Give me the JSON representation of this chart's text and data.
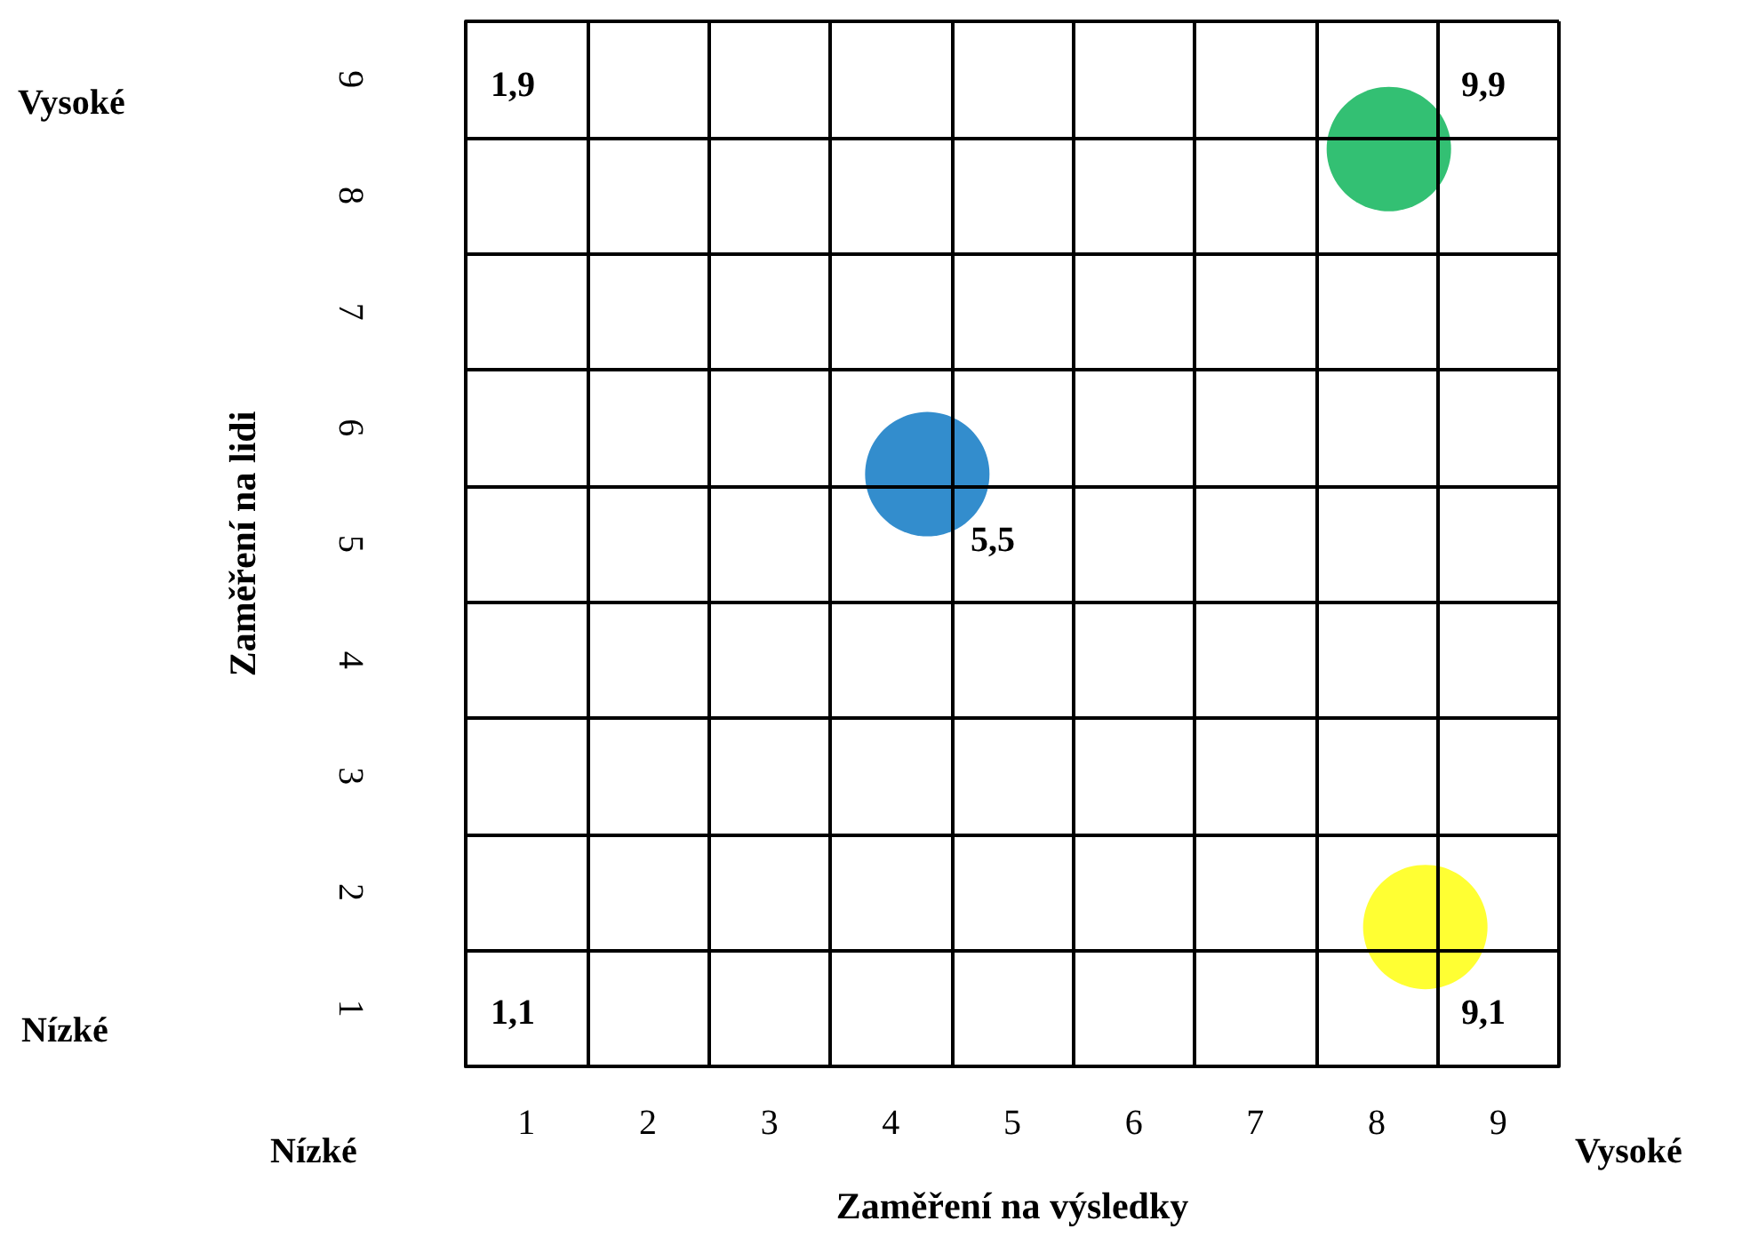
{
  "chart_data": {
    "type": "scatter",
    "xlabel": "Zaměření na výsledky",
    "ylabel": "Zaměření na lidi",
    "xlim": [
      0.5,
      9.5
    ],
    "ylim": [
      0.5,
      9.5
    ],
    "xticks": [
      {
        "value": 0.5,
        "label": null
      },
      1,
      {
        "value": 1.5,
        "label": null
      },
      2,
      {
        "value": 2.5,
        "label": null
      },
      3,
      {
        "value": 3.5,
        "label": null
      },
      4,
      {
        "value": 4.5,
        "label": null
      },
      5,
      {
        "value": 5.5,
        "label": null
      },
      6,
      {
        "value": 6.5,
        "label": null
      },
      7,
      {
        "value": 7.5,
        "label": null
      },
      8,
      {
        "value": 8.5,
        "label": null
      },
      9,
      {
        "value": 9.5,
        "label": null
      }
    ],
    "yticks": [
      {
        "value": 0.5,
        "label": null
      },
      1,
      {
        "value": 1.5,
        "label": null
      },
      2,
      {
        "value": 2.5,
        "label": null
      },
      3,
      {
        "value": 3.5,
        "label": null
      },
      4,
      {
        "value": 4.5,
        "label": null
      },
      5,
      {
        "value": 5.5,
        "label": null
      },
      6,
      {
        "value": 6.5,
        "label": null
      },
      7,
      {
        "value": 7.5,
        "label": null
      },
      8,
      {
        "value": 8.5,
        "label": null
      },
      9,
      {
        "value": 9.5,
        "label": null
      }
    ],
    "grid": true,
    "marker": "circle",
    "series": [
      {
        "color": "#0070c0",
        "x": [
          4.3
        ],
        "values": [
          5.6
        ]
      },
      {
        "color": "#00b050",
        "x": [
          8.1
        ],
        "values": [
          8.4
        ]
      },
      {
        "color": "#ffff00",
        "x": [
          8.4
        ],
        "values": [
          1.7
        ]
      }
    ],
    "annotations": [
      "1,9",
      "9,9",
      "5,5",
      "1,1",
      "9,1",
      "Vysoké",
      "Nízké",
      "Nízké",
      "Vysoké"
    ]
  }
}
